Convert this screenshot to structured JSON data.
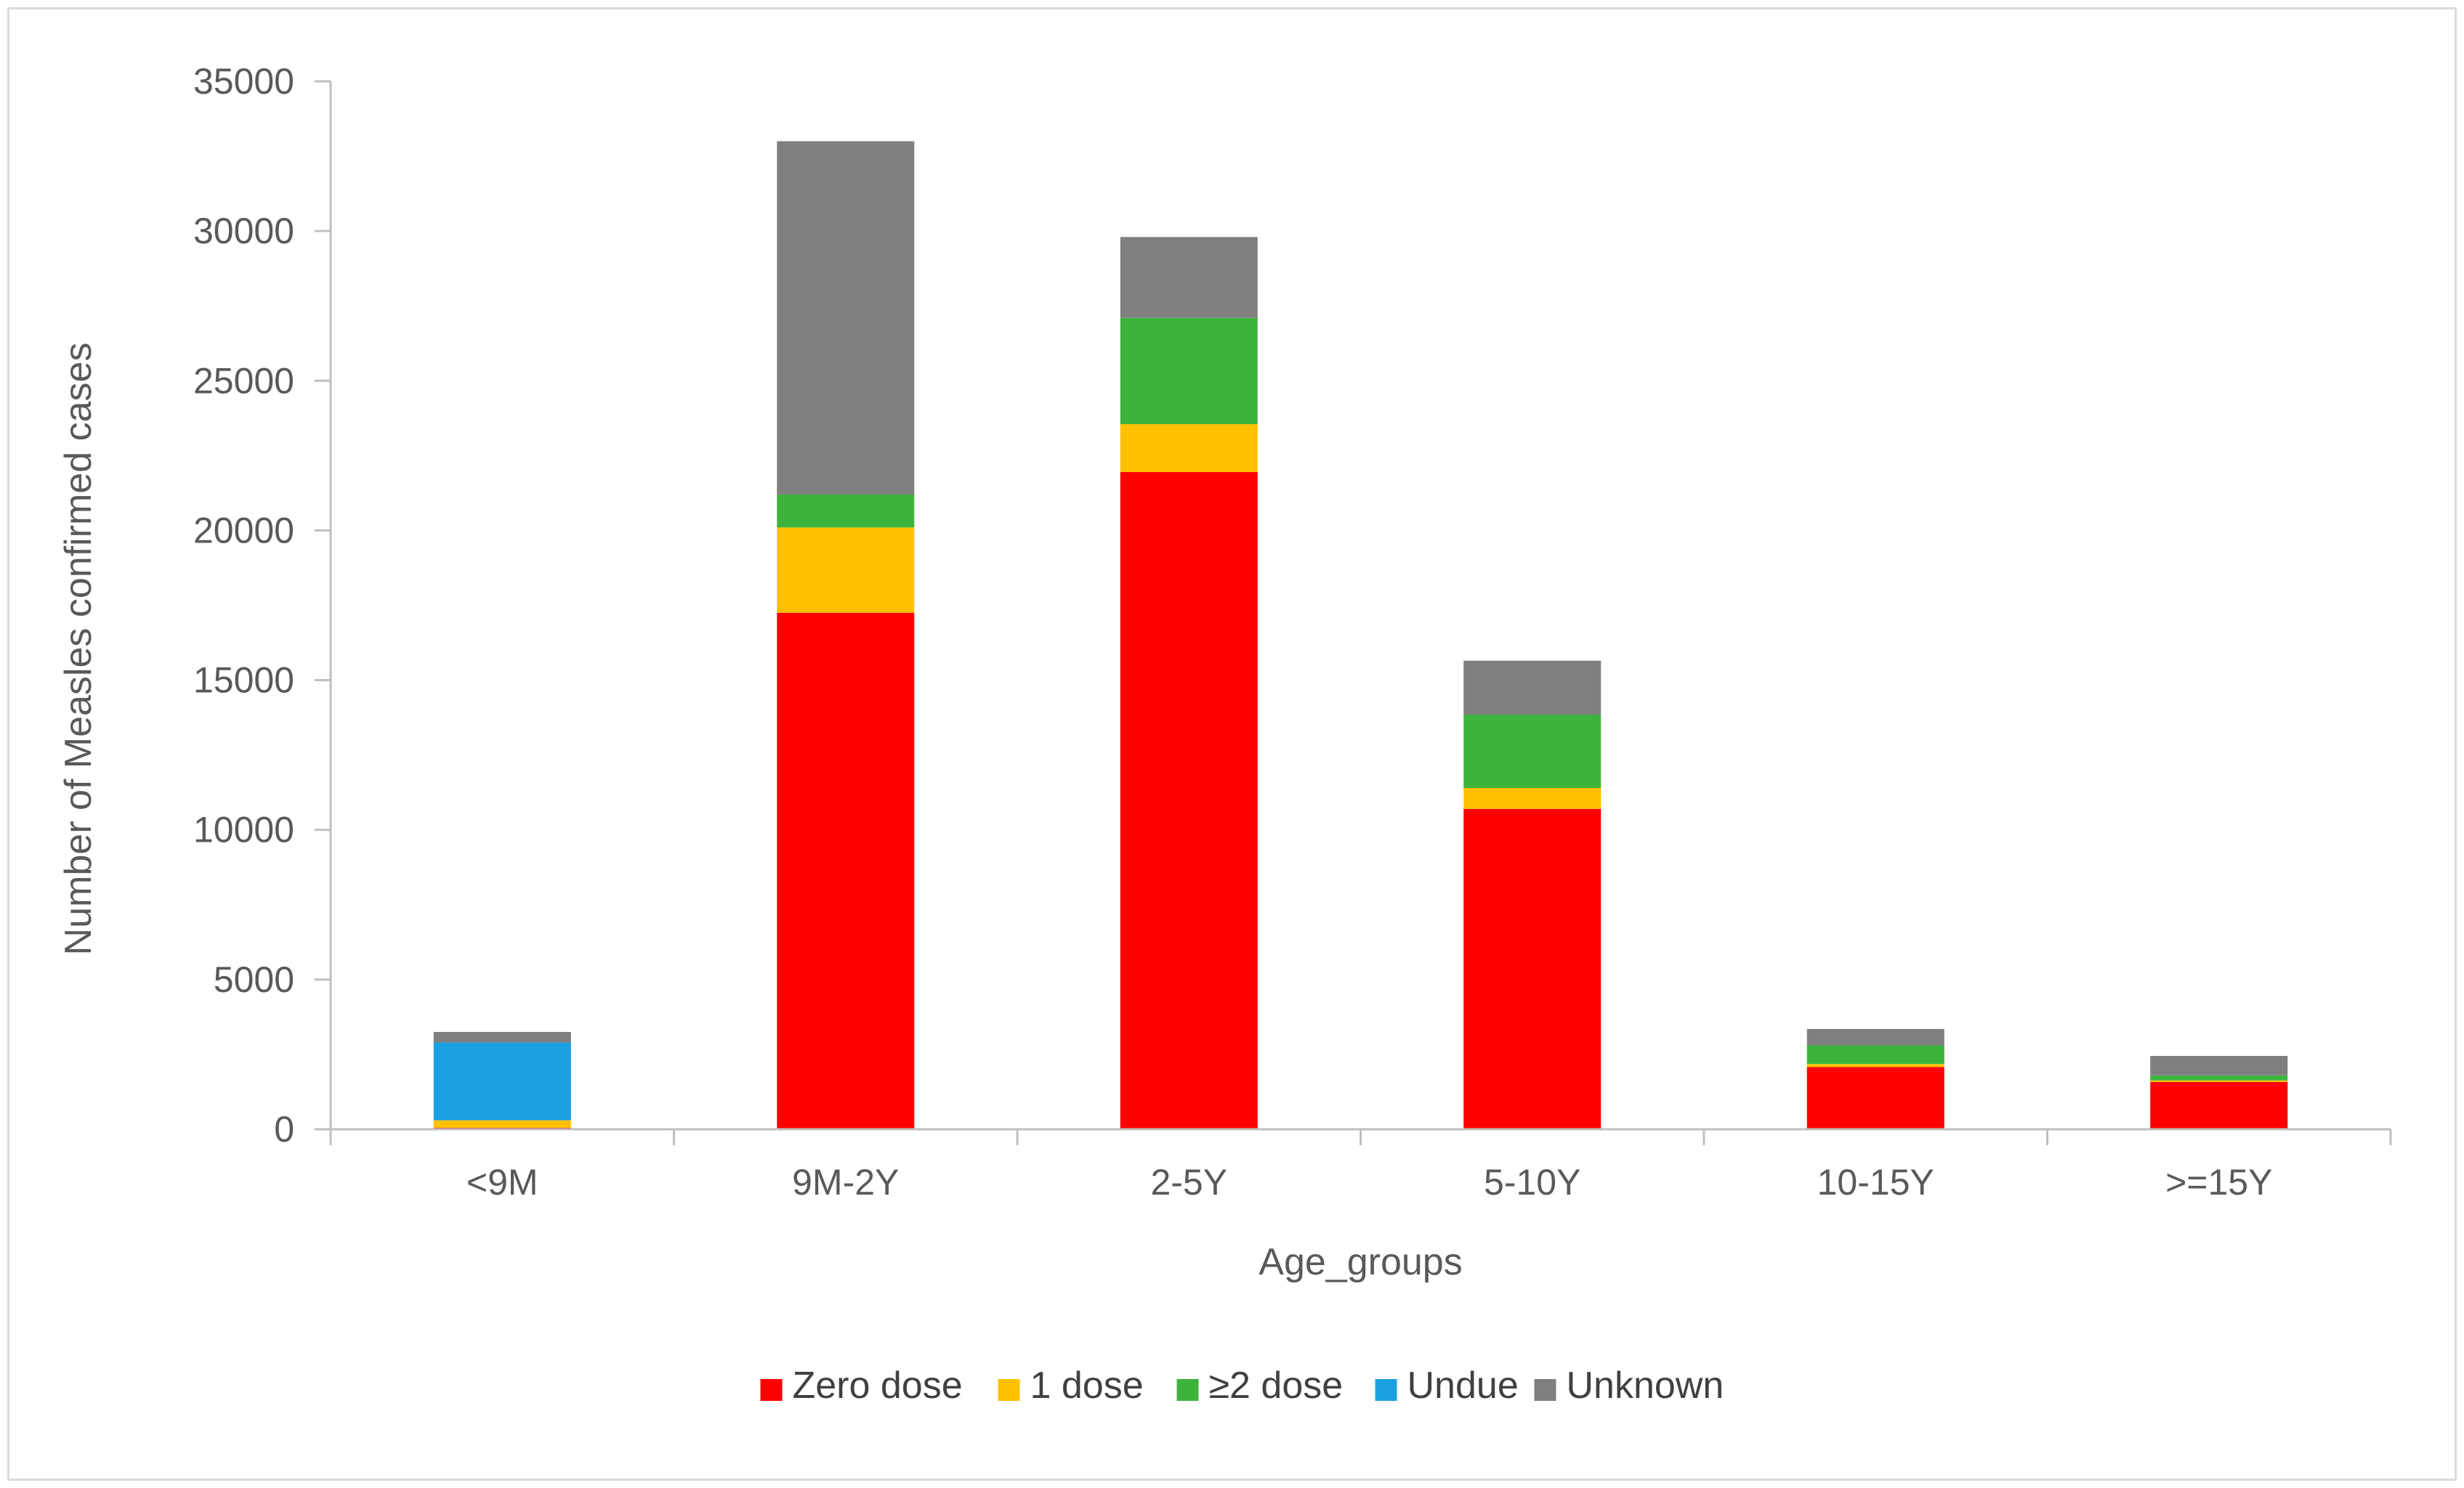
{
  "chart_data": {
    "type": "bar",
    "stacked": true,
    "categories": [
      "<9M",
      "9M-2Y",
      "2-5Y",
      "5-10Y",
      "10-15Y",
      ">=15Y"
    ],
    "series": [
      {
        "name": "Zero dose",
        "color": "#ff0000",
        "values": [
          50,
          17250,
          21950,
          10700,
          2080,
          1580
        ]
      },
      {
        "name": "1 dose",
        "color": "#ffc000",
        "values": [
          250,
          2850,
          1600,
          700,
          100,
          50
        ]
      },
      {
        "name": "≥2 dose",
        "color": "#3cb43c",
        "values": [
          0,
          1100,
          3550,
          2450,
          620,
          170
        ]
      },
      {
        "name": "Undue",
        "color": "#1ba1e2",
        "values": [
          2600,
          0,
          0,
          0,
          0,
          0
        ]
      },
      {
        "name": "Unknown",
        "color": "#7f7f7f",
        "values": [
          350,
          11800,
          2700,
          1800,
          550,
          650
        ]
      }
    ],
    "xlabel": "Age_groups",
    "ylabel": "Number of Measles confirmed cases",
    "ylim": [
      0,
      35000
    ],
    "yticks": [
      0,
      5000,
      10000,
      15000,
      20000,
      25000,
      30000,
      35000
    ],
    "grid": false,
    "legend_position": "bottom"
  }
}
